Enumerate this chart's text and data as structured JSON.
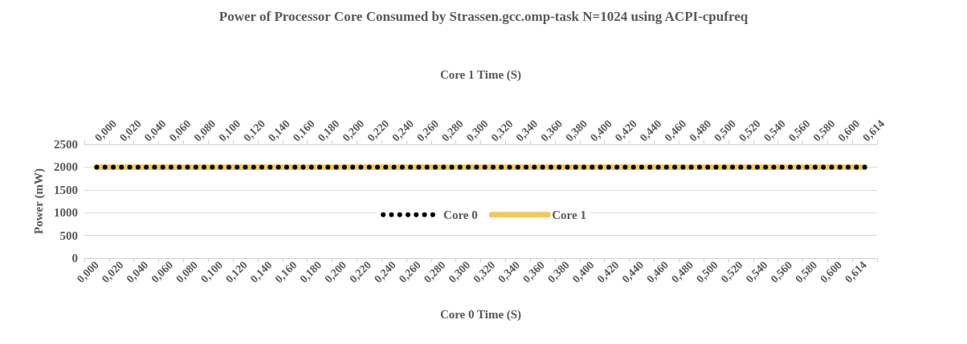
{
  "chart_data": {
    "type": "line",
    "title": "Power of Processor Core Consumed   by Strassen.gcc.omp-task  N=1024 using ACPI-cpufreq",
    "xlabel": "Core 0 Time (S)",
    "x2label": "Core 1 Time (S)",
    "ylabel": "Power (mW)",
    "categories": [
      "0,000",
      "0,020",
      "0,040",
      "0,060",
      "0,080",
      "0,100",
      "0,120",
      "0,140",
      "0,160",
      "0,180",
      "0,200",
      "0,220",
      "0,240",
      "0,260",
      "0,280",
      "0,300",
      "0,320",
      "0,340",
      "0,360",
      "0,380",
      "0,400",
      "0,420",
      "0,440",
      "0,460",
      "0,480",
      "0,500",
      "0,520",
      "0,540",
      "0,560",
      "0,580",
      "0,600",
      "0,614"
    ],
    "series": [
      {
        "name": "Core 0",
        "color": "#000000",
        "line_style": "dotted",
        "values": [
          2000,
          2000,
          2000,
          2000,
          2000,
          2000,
          2000,
          2000,
          2000,
          2000,
          2000,
          2000,
          2000,
          2000,
          2000,
          2000,
          2000,
          2000,
          2000,
          2000,
          2000,
          2000,
          2000,
          2000,
          2000,
          2000,
          2000,
          2000,
          2000,
          2000,
          2000,
          2000
        ]
      },
      {
        "name": "Core 1",
        "color": "#f2c75c",
        "line_style": "solid",
        "values": [
          2000,
          2000,
          2000,
          2000,
          2000,
          2000,
          2000,
          2000,
          2000,
          2000,
          2000,
          2000,
          2000,
          2000,
          2000,
          2000,
          2000,
          2000,
          2000,
          2000,
          2000,
          2000,
          2000,
          2000,
          2000,
          2000,
          2000,
          2000,
          2000,
          2000,
          2000,
          2000
        ]
      }
    ],
    "ylim": [
      0,
      2500
    ],
    "yticks": [
      0,
      500,
      1000,
      1500,
      2000,
      2500
    ],
    "grid": "y",
    "legend": "center",
    "marker": "none"
  }
}
